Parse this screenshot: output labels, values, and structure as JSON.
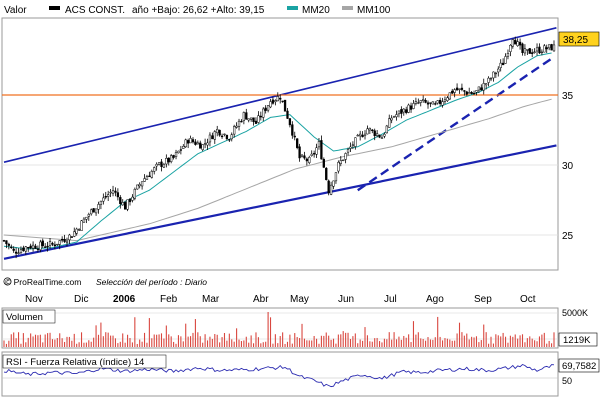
{
  "header": {
    "valor_label": "Valor",
    "instrument": "ACS CONST.",
    "range_text": "año +Bajo: 26,62 +Alto: 39,15",
    "ma20_label": "MM20",
    "ma100_label": "MM100"
  },
  "footer": {
    "source": "© ProRealTime.com",
    "period": "Selección del período : Diario"
  },
  "colors": {
    "price": "#000000",
    "ma20": "#1aa3a3",
    "ma100": "#a6a6a6",
    "trend": "#1a23b0",
    "resistance": "#f07020",
    "volume": "#d9473f",
    "rsi": "#2a2ab0",
    "price_badge": "#ffd21e"
  },
  "chart_data": [
    {
      "type": "candlestick",
      "title": "ACS CONST.",
      "x_axis_labels": [
        "Nov",
        "Dic",
        "2006",
        "Feb",
        "Mar",
        "Abr",
        "May",
        "Jun",
        "Jul",
        "Ago",
        "Sep",
        "Oct"
      ],
      "y_ticks": [
        25,
        30,
        35
      ],
      "ylim": [
        22.5,
        40.5
      ],
      "last_price_label": "38,25",
      "last_price": 38.25,
      "year_low": 26.62,
      "year_high": 39.15,
      "close_anchor_points": [
        [
          0,
          24.6
        ],
        [
          4,
          23.8
        ],
        [
          10,
          24.2
        ],
        [
          20,
          24.3
        ],
        [
          28,
          25.0
        ],
        [
          35,
          26.5
        ],
        [
          40,
          27.4
        ],
        [
          45,
          28.2
        ],
        [
          50,
          27.0
        ],
        [
          57,
          28.9
        ],
        [
          64,
          30.0
        ],
        [
          70,
          30.5
        ],
        [
          76,
          31.8
        ],
        [
          82,
          31.4
        ],
        [
          88,
          32.5
        ],
        [
          93,
          32.0
        ],
        [
          99,
          33.6
        ],
        [
          104,
          33.0
        ],
        [
          110,
          34.6
        ],
        [
          114,
          34.9
        ],
        [
          118,
          33.0
        ],
        [
          122,
          30.5
        ],
        [
          126,
          30.3
        ],
        [
          130,
          31.5
        ],
        [
          134,
          28.2
        ],
        [
          138,
          30.0
        ],
        [
          144,
          31.5
        ],
        [
          150,
          32.6
        ],
        [
          156,
          32.0
        ],
        [
          160,
          33.4
        ],
        [
          166,
          34.0
        ],
        [
          172,
          34.5
        ],
        [
          178,
          34.2
        ],
        [
          186,
          35.4
        ],
        [
          194,
          35.1
        ],
        [
          200,
          36.0
        ],
        [
          206,
          37.3
        ],
        [
          210,
          39.2
        ],
        [
          214,
          38.0
        ],
        [
          220,
          38.2
        ],
        [
          226,
          38.4
        ]
      ],
      "moving_averages": [
        {
          "name": "MM20",
          "points": [
            [
              0,
              24.2
            ],
            [
              10,
              24.0
            ],
            [
              20,
              24.1
            ],
            [
              30,
              24.5
            ],
            [
              40,
              26.0
            ],
            [
              50,
              27.4
            ],
            [
              60,
              28.2
            ],
            [
              70,
              29.5
            ],
            [
              80,
              30.8
            ],
            [
              90,
              31.6
            ],
            [
              100,
              32.4
            ],
            [
              110,
              33.4
            ],
            [
              118,
              33.6
            ],
            [
              128,
              32.0
            ],
            [
              136,
              31.0
            ],
            [
              146,
              31.3
            ],
            [
              156,
              32.2
            ],
            [
              166,
              33.2
            ],
            [
              176,
              33.9
            ],
            [
              186,
              34.6
            ],
            [
              196,
              35.2
            ],
            [
              204,
              35.9
            ],
            [
              212,
              37.0
            ],
            [
              220,
              37.8
            ],
            [
              226,
              38.0
            ]
          ]
        },
        {
          "name": "MM100",
          "points": [
            [
              0,
              25.0
            ],
            [
              30,
              24.6
            ],
            [
              60,
              25.8
            ],
            [
              80,
              26.9
            ],
            [
              100,
              28.3
            ],
            [
              120,
              29.7
            ],
            [
              140,
              30.6
            ],
            [
              160,
              31.3
            ],
            [
              180,
              32.3
            ],
            [
              200,
              33.3
            ],
            [
              215,
              34.2
            ],
            [
              226,
              34.7
            ]
          ]
        }
      ],
      "trendlines": [
        {
          "name": "upper channel",
          "style": "solid",
          "start": [
            0,
            30.2
          ],
          "end": [
            228,
            39.8
          ]
        },
        {
          "name": "lower channel",
          "style": "solid",
          "start": [
            0,
            23.3
          ],
          "end": [
            228,
            31.4
          ]
        },
        {
          "name": "support",
          "style": "dashed",
          "start": [
            146,
            28.2
          ],
          "end": [
            226,
            37.6
          ]
        },
        {
          "name": "resistance",
          "style": "solid",
          "color": "orange",
          "value": 35.0
        }
      ]
    },
    {
      "type": "bar",
      "title": "Volumen",
      "y_ticks_labels": [
        "5000K",
        "1219K"
      ],
      "last_value_label": "1219K"
    },
    {
      "type": "line",
      "title": "RSI - Fuerza Relativa (índice) 14",
      "y_tick_labels": [
        "50"
      ],
      "last_value_label": "69,7582",
      "points": [
        [
          0,
          60
        ],
        [
          10,
          50
        ],
        [
          20,
          55
        ],
        [
          30,
          52
        ],
        [
          40,
          65
        ],
        [
          50,
          58
        ],
        [
          60,
          63
        ],
        [
          70,
          58
        ],
        [
          80,
          66
        ],
        [
          90,
          60
        ],
        [
          100,
          62
        ],
        [
          110,
          66
        ],
        [
          116,
          68
        ],
        [
          122,
          45
        ],
        [
          128,
          35
        ],
        [
          134,
          20
        ],
        [
          140,
          35
        ],
        [
          148,
          50
        ],
        [
          156,
          40
        ],
        [
          164,
          56
        ],
        [
          172,
          55
        ],
        [
          180,
          60
        ],
        [
          190,
          64
        ],
        [
          200,
          60
        ],
        [
          208,
          66
        ],
        [
          214,
          72
        ],
        [
          220,
          60
        ],
        [
          226,
          70
        ]
      ]
    }
  ]
}
